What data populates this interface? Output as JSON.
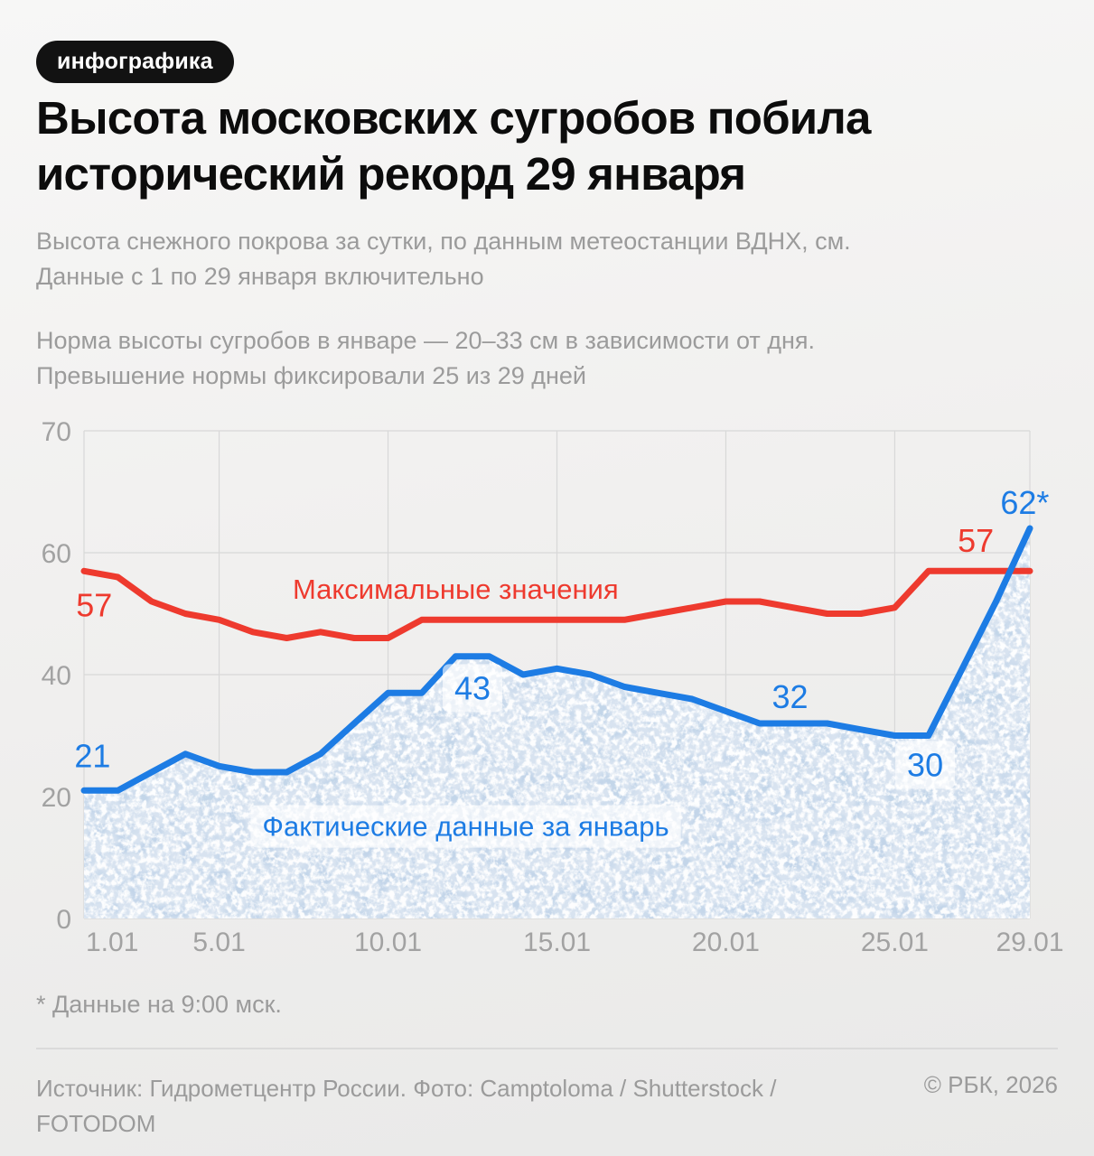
{
  "badge": "инфографика",
  "title_lines": [
    "Высота московских сугробов побила",
    "исторический рекорд 29 января"
  ],
  "description_lines": [
    "Высота снежного покрова за сутки, по данным метеостанции ВДНХ, см.",
    "Данные с 1 по 29 января включительно"
  ],
  "note_lines": [
    "Норма высоты сугробов в январе — 20–33 см в зависимости от дня.",
    "Превышение нормы фиксировали 25 из 29 дней"
  ],
  "footnote": "* Данные на 9:00 мск.",
  "source_lines": [
    "Источник: Гидрометцентр России. Фото: Camptoloma / Shutterstock /",
    "FOTODOM"
  ],
  "copyright": "© РБК, 2026",
  "colors": {
    "red": "#ee3a2e",
    "blue": "#1d7ce4",
    "grid": "#d8d8d8",
    "axis_text": "#a2a2a2",
    "snow_base": "#d8e3f0",
    "snow_shadow": "#bed2e8",
    "snow_highlight": "#ffffff",
    "label_box": "#ffffff"
  },
  "chart_data": {
    "type": "line",
    "x_unit": "день января",
    "x_range": [
      1,
      29
    ],
    "x_ticks": [
      {
        "day": 1,
        "label": "1.01"
      },
      {
        "day": 5,
        "label": "5.01"
      },
      {
        "day": 10,
        "label": "10.01"
      },
      {
        "day": 15,
        "label": "15.01"
      },
      {
        "day": 20,
        "label": "20.01"
      },
      {
        "day": 25,
        "label": "25.01"
      },
      {
        "day": 29,
        "label": "29.01"
      }
    ],
    "y_ticks": [
      0,
      20,
      40,
      60,
      70
    ],
    "y_ticks_equal_pixel_spacing": true,
    "grid": true,
    "series": [
      {
        "name": "Максимальные значения",
        "color": "#ee3a2e",
        "values": [
          57,
          56,
          52,
          50,
          49,
          47,
          46,
          47,
          46,
          46,
          49,
          49,
          49,
          49,
          49,
          49,
          49,
          50,
          51,
          52,
          52,
          51,
          50,
          50,
          51,
          57,
          57,
          57,
          57
        ]
      },
      {
        "name": "Фактические данные за январь",
        "color": "#1d7ce4",
        "area": "snow-texture",
        "values": [
          21,
          21,
          24,
          27,
          25,
          24,
          24,
          27,
          32,
          37,
          37,
          43,
          43,
          40,
          41,
          40,
          38,
          37,
          36,
          34,
          32,
          32,
          32,
          31,
          30,
          30,
          41,
          52,
          62
        ]
      }
    ],
    "annotations": [
      {
        "text": "57",
        "color": "#ee3a2e",
        "day": 1.3,
        "value": 51.4,
        "boxed": false
      },
      {
        "text": "21",
        "color": "#1d7ce4",
        "day": 1.25,
        "value": 26.7,
        "boxed": false
      },
      {
        "text": "43",
        "color": "#1d7ce4",
        "day": 12.5,
        "value": 37.8,
        "boxed": true
      },
      {
        "text": "32",
        "color": "#1d7ce4",
        "day": 21.9,
        "value": 36.4,
        "boxed": false
      },
      {
        "text": "30",
        "color": "#1d7ce4",
        "day": 25.9,
        "value": 25.2,
        "boxed": true
      },
      {
        "text": "57",
        "color": "#ee3a2e",
        "day": 27.4,
        "value": 61.0,
        "boxed": false
      },
      {
        "text": "62*",
        "color": "#1d7ce4",
        "day": 28.85,
        "value": 64.1,
        "boxed": false
      }
    ],
    "line_labels": [
      {
        "text": "Максимальные значения",
        "color": "#ee3a2e",
        "day": 12.0,
        "value": 54.0,
        "boxed": false
      },
      {
        "text": "Фактические данные за январь",
        "color": "#1d7ce4",
        "day": 12.3,
        "value": 15.1,
        "boxed": true
      }
    ]
  }
}
